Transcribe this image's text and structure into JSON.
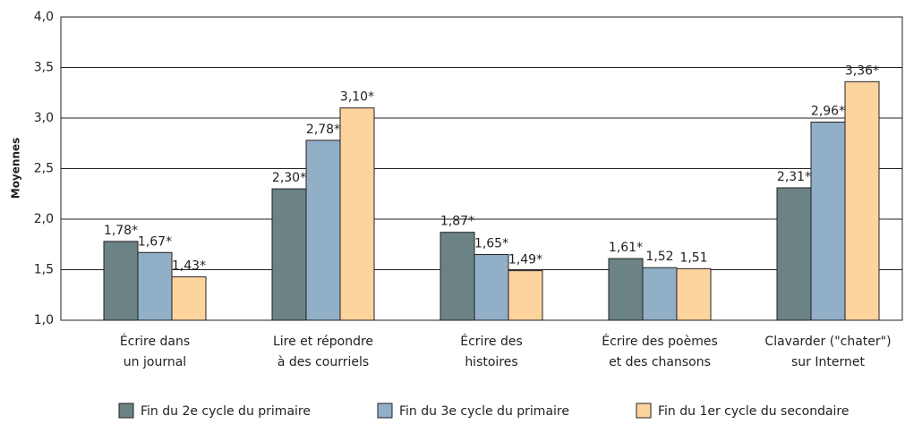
{
  "chart_data": {
    "type": "bar",
    "y_label": "Moyennes",
    "categories": [
      [
        "Écrire dans",
        "un journal"
      ],
      [
        "Lire et répondre",
        "à des courriels"
      ],
      [
        "Écrire des",
        "histoires"
      ],
      [
        "Écrire des poèmes",
        "et des chansons"
      ],
      [
        "Clavarder (\"chater\")",
        "sur Internet"
      ]
    ],
    "series": [
      {
        "name": "Fin du 2e cycle du primaire",
        "color": "#6b8385",
        "values": [
          1.78,
          2.3,
          1.87,
          1.61,
          2.31
        ],
        "value_labels": [
          "1,78*",
          "2,30*",
          "1,87*",
          "1,61*",
          "2,31*"
        ]
      },
      {
        "name": "Fin du 3e cycle du primaire",
        "color": "#92afc8",
        "values": [
          1.67,
          2.78,
          1.65,
          1.52,
          2.96
        ],
        "value_labels": [
          "1,67*",
          "2,78*",
          "1,65*",
          "1,52",
          "2,96*"
        ]
      },
      {
        "name": "Fin du 1er cycle du secondaire",
        "color": "#fdd49e",
        "values": [
          1.43,
          3.1,
          1.49,
          1.51,
          3.36
        ],
        "value_labels": [
          "1,43*",
          "3,10*",
          "1,49*",
          "1,51",
          "3,36*"
        ]
      }
    ],
    "ylim": [
      1,
      4
    ],
    "yticks": [
      {
        "value": 1,
        "label": "1,0"
      },
      {
        "value": 1.5,
        "label": "1,5"
      },
      {
        "value": 2,
        "label": "2,0"
      },
      {
        "value": 2.5,
        "label": "2,5"
      },
      {
        "value": 3,
        "label": "3,0"
      },
      {
        "value": 3.5,
        "label": "3,5"
      },
      {
        "value": 4,
        "label": "4,0"
      }
    ],
    "grid": true
  }
}
